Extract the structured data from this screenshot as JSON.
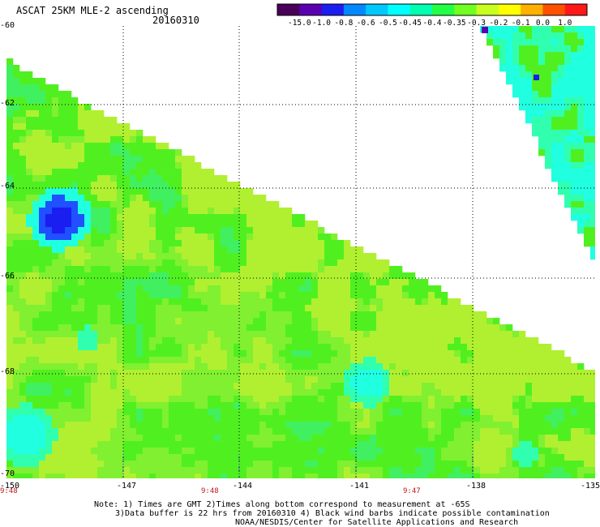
{
  "header": {
    "title": "ASCAT 25KM MLE-2 ascending",
    "date": "20160310"
  },
  "colorbar": {
    "labels": [
      "-15.0",
      "-1.0",
      "-0.8",
      "-0.6",
      "-0.5",
      "-0.45",
      "-0.4",
      "-0.35",
      "-0.3",
      "-0.2",
      "-0.1",
      "0.0",
      "1.0"
    ],
    "colors": [
      "#4a0058",
      "#5a00b0",
      "#1a1ef0",
      "#0088ff",
      "#00c8ff",
      "#00ffff",
      "#00ffb0",
      "#22ff44",
      "#70ff20",
      "#c8ff20",
      "#ffff00",
      "#ffb000",
      "#ff5000",
      "#ff1818"
    ]
  },
  "axes": {
    "y_labels": [
      "-60",
      "-62",
      "-64",
      "-66",
      "-68",
      "-70"
    ],
    "x_labels": [
      "-150",
      "-147",
      "-144",
      "-141",
      "-138",
      "-135"
    ],
    "time_labels": [
      "9:48",
      "9:48",
      "9:47"
    ]
  },
  "map_colors": {
    "base_green": "#50f020",
    "light_green": "#80f030",
    "yellow_green": "#b0f030",
    "cyan": "#20ffe0",
    "blue": "#2050ff",
    "deep_blue": "#1a1ef0"
  },
  "notes": {
    "line1": "Note: 1) Times are GMT 2)Times along bottom correspond to measurement at -65S",
    "line2": "3)Data buffer is 22 hrs from 20160310 4) Black wind barbs indicate possible contamination",
    "line3": "NOAA/NESDIS/Center for Satellite Applications and Research"
  }
}
